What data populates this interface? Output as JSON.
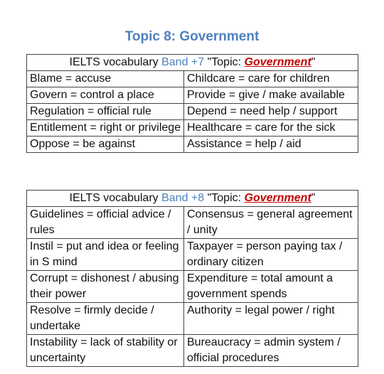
{
  "title": "Topic 8: Government",
  "tables": [
    {
      "header": {
        "prefix": "IELTS vocabulary ",
        "band": "Band +7",
        "topic_open": " \"Topic: ",
        "topic": "Government",
        "topic_close": "\""
      },
      "rows": [
        [
          "Blame = accuse",
          "Childcare = care for children"
        ],
        [
          "Govern = control a place",
          "Provide = give / make available"
        ],
        [
          "Regulation = official rule",
          "Depend = need help / support"
        ],
        [
          "Entitlement = right or privilege",
          "Healthcare = care for the sick"
        ],
        [
          "Oppose = be against",
          "Assistance = help / aid"
        ]
      ]
    },
    {
      "header": {
        "prefix": "IELTS vocabulary ",
        "band": "Band +8",
        "topic_open": " \"Topic: ",
        "topic": "Government",
        "topic_close": "\""
      },
      "rows": [
        [
          "Guidelines = official advice / rules",
          "Consensus = general agreement / unity"
        ],
        [
          "Instil = put and idea or feeling in S mind",
          "Taxpayer = person paying tax / ordinary citizen"
        ],
        [
          "Corrupt = dishonest / abusing their power",
          "Expenditure = total amount a government spends"
        ],
        [
          "Resolve = firmly decide / undertake",
          "Authority = legal power / right"
        ],
        [
          "Instability = lack of stability or uncertainty",
          "Bureaucracy = admin system / official procedures"
        ]
      ]
    }
  ]
}
